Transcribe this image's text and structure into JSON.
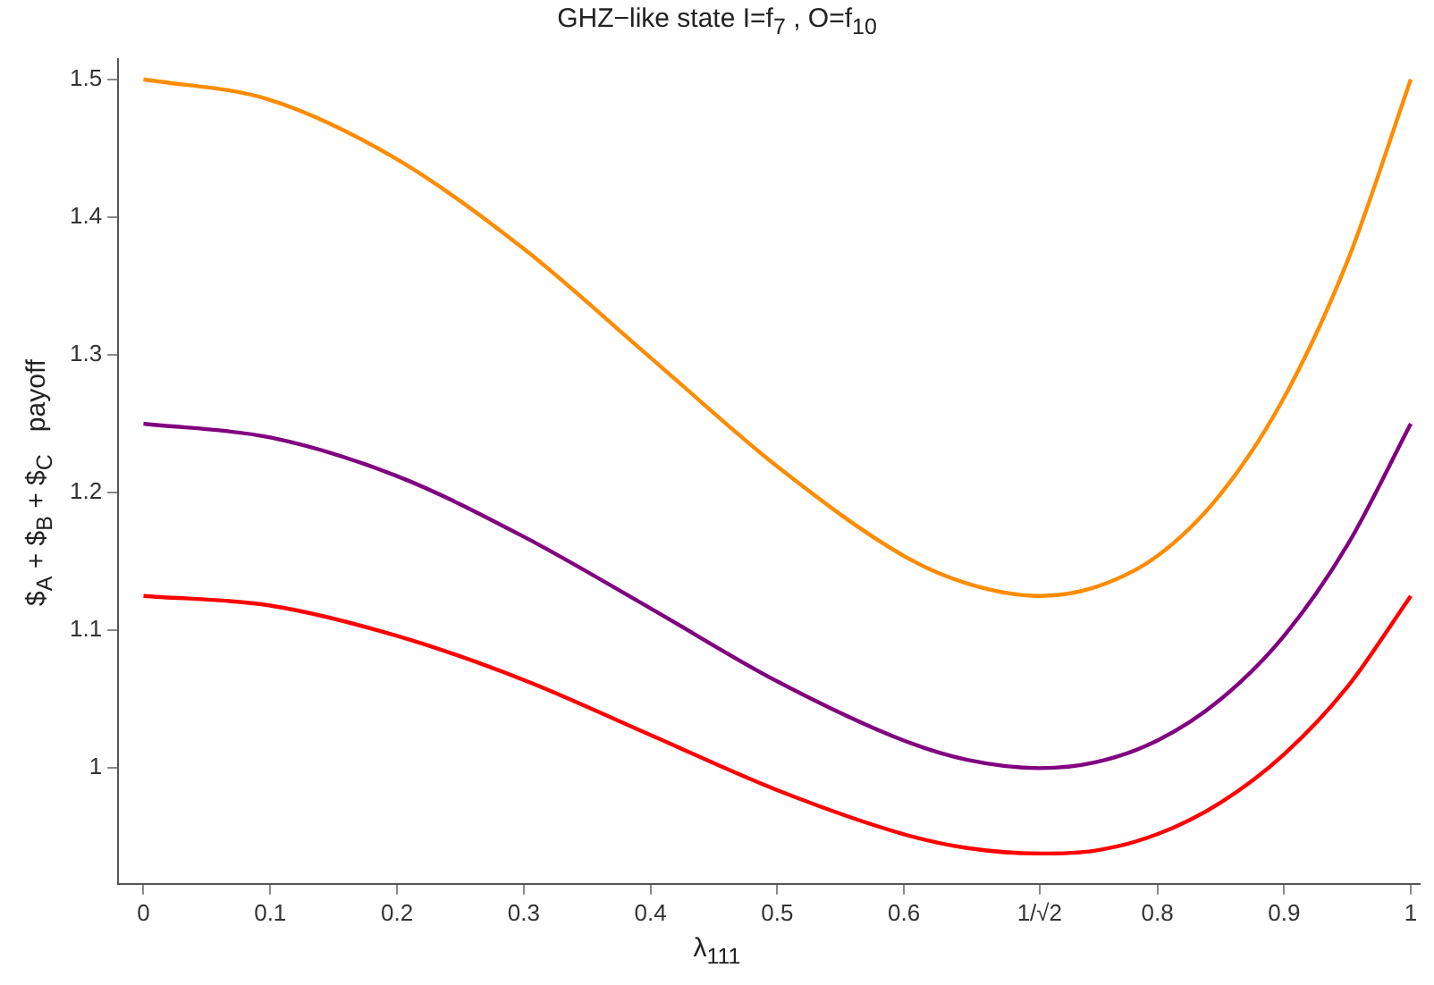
{
  "chart_data": {
    "type": "line",
    "title": "GHZ−like state I=f$_{7}$ , O=f$_{10}$",
    "xlabel": "λ$_{111}$",
    "ylabel": "$$_{A}$ + $$_{B}$ + $$_{C}$   payoff",
    "x": [
      0,
      0.1,
      0.2,
      0.3,
      0.4,
      0.5,
      0.6,
      0.65,
      0.7071,
      0.75,
      0.8,
      0.85,
      0.9,
      0.95,
      1
    ],
    "series": [
      {
        "color": "#ff8c00",
        "values": [
          1.5,
          1.485,
          1.442,
          1.377,
          1.298,
          1.219,
          1.154,
          1.134,
          1.125,
          1.131,
          1.154,
          1.199,
          1.269,
          1.368,
          1.5
        ]
      },
      {
        "color": "#800080",
        "values": [
          1.25,
          1.24,
          1.212,
          1.168,
          1.116,
          1.063,
          1.02,
          1.006,
          1.0,
          1.004,
          1.02,
          1.05,
          1.096,
          1.162,
          1.25
        ]
      },
      {
        "color": "#ff0000",
        "values": [
          1.125,
          1.118,
          1.096,
          1.064,
          1.024,
          0.984,
          0.952,
          0.942,
          0.938,
          0.94,
          0.952,
          0.975,
          1.01,
          1.059,
          1.125
        ]
      }
    ],
    "xlim": [
      -0.02,
      1.007
    ],
    "ylim": [
      0.916,
      1.515
    ],
    "xticks": [
      0,
      0.1,
      0.2,
      0.3,
      0.4,
      0.5,
      0.6,
      {
        "value": 0.7071,
        "label": "1/√2"
      },
      0.8,
      0.9,
      1
    ],
    "yticks": [
      1,
      1.1,
      1.2,
      1.3,
      1.4,
      1.5
    ],
    "grid": false,
    "legend": false,
    "marker": "none",
    "line_style": "solid"
  }
}
